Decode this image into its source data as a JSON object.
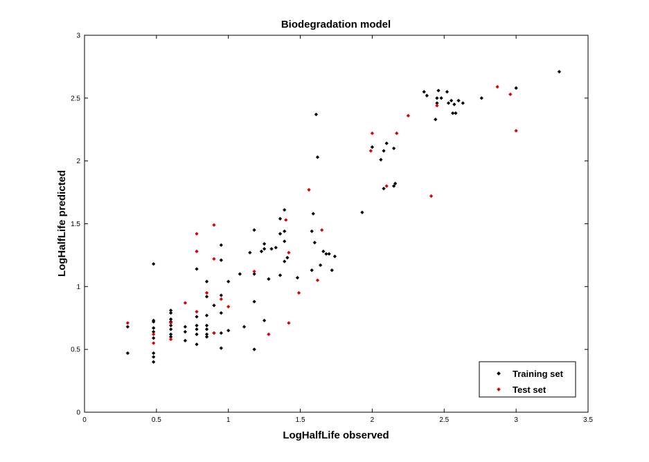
{
  "chart_data": {
    "type": "scatter",
    "title": "Biodegradation model",
    "xlabel": "LogHalfLife observed",
    "ylabel": "LogHalfLife predicted",
    "xlim": [
      0,
      3.5
    ],
    "ylim": [
      0,
      3
    ],
    "xticks": [
      "0",
      "0.5",
      "1",
      "1.5",
      "2",
      "2.5",
      "3",
      "3.5"
    ],
    "yticks": [
      "0",
      "0.5",
      "1",
      "1.5",
      "2",
      "2.5",
      "3"
    ],
    "grid": false,
    "legend_position": "bottom-right",
    "series": [
      {
        "name": "Training set",
        "color": "#000000",
        "points": [
          [
            0.3,
            0.47
          ],
          [
            0.3,
            0.68
          ],
          [
            0.48,
            0.4
          ],
          [
            0.48,
            0.44
          ],
          [
            0.48,
            0.47
          ],
          [
            0.48,
            0.59
          ],
          [
            0.48,
            0.64
          ],
          [
            0.48,
            0.67
          ],
          [
            0.48,
            0.72
          ],
          [
            0.48,
            0.73
          ],
          [
            0.48,
            1.18
          ],
          [
            0.6,
            0.6
          ],
          [
            0.6,
            0.62
          ],
          [
            0.6,
            0.66
          ],
          [
            0.6,
            0.69
          ],
          [
            0.6,
            0.72
          ],
          [
            0.6,
            0.74
          ],
          [
            0.6,
            0.79
          ],
          [
            0.6,
            0.81
          ],
          [
            0.7,
            0.57
          ],
          [
            0.7,
            0.64
          ],
          [
            0.7,
            0.68
          ],
          [
            0.78,
            0.54
          ],
          [
            0.78,
            0.62
          ],
          [
            0.78,
            0.66
          ],
          [
            0.78,
            0.69
          ],
          [
            0.78,
            0.76
          ],
          [
            0.78,
            1.14
          ],
          [
            0.85,
            0.6
          ],
          [
            0.85,
            0.62
          ],
          [
            0.85,
            0.66
          ],
          [
            0.85,
            0.69
          ],
          [
            0.85,
            0.77
          ],
          [
            0.85,
            0.92
          ],
          [
            0.85,
            1.04
          ],
          [
            0.9,
            0.63
          ],
          [
            0.9,
            0.85
          ],
          [
            0.95,
            0.51
          ],
          [
            0.95,
            0.63
          ],
          [
            0.95,
            0.79
          ],
          [
            0.95,
            0.93
          ],
          [
            0.95,
            1.21
          ],
          [
            0.95,
            1.33
          ],
          [
            1.0,
            0.65
          ],
          [
            1.0,
            1.04
          ],
          [
            1.08,
            1.1
          ],
          [
            1.11,
            0.68
          ],
          [
            1.15,
            1.27
          ],
          [
            1.18,
            0.5
          ],
          [
            1.18,
            0.88
          ],
          [
            1.18,
            1.1
          ],
          [
            1.18,
            1.45
          ],
          [
            1.23,
            1.28
          ],
          [
            1.25,
            0.73
          ],
          [
            1.25,
            1.3
          ],
          [
            1.25,
            1.34
          ],
          [
            1.28,
            1.06
          ],
          [
            1.3,
            1.3
          ],
          [
            1.33,
            1.31
          ],
          [
            1.36,
            1.09
          ],
          [
            1.36,
            1.42
          ],
          [
            1.36,
            1.54
          ],
          [
            1.39,
            1.2
          ],
          [
            1.39,
            1.36
          ],
          [
            1.39,
            1.44
          ],
          [
            1.39,
            1.61
          ],
          [
            1.41,
            1.23
          ],
          [
            1.48,
            1.07
          ],
          [
            1.58,
            1.13
          ],
          [
            1.58,
            1.44
          ],
          [
            1.59,
            1.58
          ],
          [
            1.6,
            1.35
          ],
          [
            1.61,
            2.37
          ],
          [
            1.62,
            2.03
          ],
          [
            1.64,
            1.17
          ],
          [
            1.66,
            1.28
          ],
          [
            1.68,
            1.26
          ],
          [
            1.7,
            1.26
          ],
          [
            1.72,
            1.13
          ],
          [
            1.74,
            1.24
          ],
          [
            1.93,
            1.59
          ],
          [
            2.0,
            2.11
          ],
          [
            2.06,
            2.01
          ],
          [
            2.08,
            1.78
          ],
          [
            2.08,
            2.08
          ],
          [
            2.1,
            2.14
          ],
          [
            2.15,
            2.1
          ],
          [
            2.15,
            1.8
          ],
          [
            2.16,
            1.82
          ],
          [
            2.36,
            2.55
          ],
          [
            2.38,
            2.52
          ],
          [
            2.44,
            2.33
          ],
          [
            2.45,
            2.46
          ],
          [
            2.45,
            2.5
          ],
          [
            2.46,
            2.56
          ],
          [
            2.48,
            2.5
          ],
          [
            2.52,
            2.55
          ],
          [
            2.53,
            2.46
          ],
          [
            2.55,
            2.48
          ],
          [
            2.56,
            2.38
          ],
          [
            2.57,
            2.45
          ],
          [
            2.58,
            2.38
          ],
          [
            2.6,
            2.48
          ],
          [
            2.63,
            2.46
          ],
          [
            2.76,
            2.5
          ],
          [
            3.0,
            2.58
          ],
          [
            3.3,
            2.71
          ]
        ]
      },
      {
        "name": "Test set",
        "color": "#e00000",
        "points": [
          [
            0.3,
            0.71
          ],
          [
            0.48,
            0.55
          ],
          [
            0.48,
            0.62
          ],
          [
            0.6,
            0.58
          ],
          [
            0.6,
            0.71
          ],
          [
            0.7,
            0.87
          ],
          [
            0.78,
            0.8
          ],
          [
            0.78,
            1.28
          ],
          [
            0.78,
            1.42
          ],
          [
            0.85,
            0.95
          ],
          [
            0.9,
            0.63
          ],
          [
            0.9,
            1.22
          ],
          [
            0.9,
            1.49
          ],
          [
            0.95,
            0.9
          ],
          [
            1.0,
            0.84
          ],
          [
            1.18,
            1.12
          ],
          [
            1.28,
            0.62
          ],
          [
            1.4,
            1.53
          ],
          [
            1.42,
            1.27
          ],
          [
            1.42,
            0.71
          ],
          [
            1.49,
            0.95
          ],
          [
            1.56,
            1.77
          ],
          [
            1.62,
            1.05
          ],
          [
            1.65,
            1.45
          ],
          [
            1.99,
            2.08
          ],
          [
            2.0,
            2.22
          ],
          [
            2.1,
            1.8
          ],
          [
            2.17,
            2.22
          ],
          [
            2.25,
            2.36
          ],
          [
            2.41,
            1.72
          ],
          [
            2.45,
            2.44
          ],
          [
            2.87,
            2.59
          ],
          [
            2.96,
            2.53
          ],
          [
            3.0,
            2.24
          ]
        ]
      }
    ]
  }
}
